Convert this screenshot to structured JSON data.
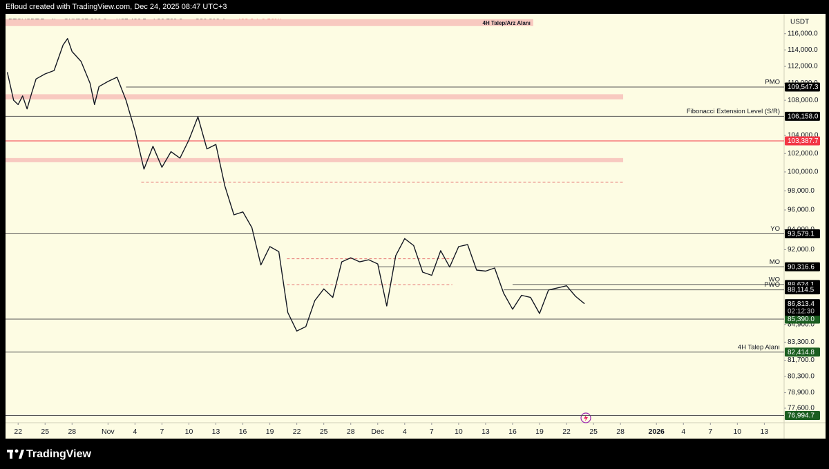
{
  "caption": "Efloud created with TradingView.com, Dec 24, 2025 08:47 UTC+3",
  "footer_brand": "TradingView",
  "chart_data": {
    "type": "line",
    "header": {
      "symbol": "BTCUSDT.P · 4h · OKX",
      "open": "O87,306.6",
      "high": "H87,426.5",
      "low": "L86,729.2",
      "close": "C86,813.4",
      "change": "−493.2 (−0.56%)"
    },
    "currency": "USDT",
    "log_scale": true,
    "x": [
      -1.2,
      -0.5,
      0,
      0.5,
      1,
      1.5,
      2,
      3,
      4,
      5,
      5.5,
      6,
      7,
      8,
      8.5,
      9,
      10,
      11,
      12,
      13,
      14,
      15,
      16,
      17,
      18,
      19,
      20,
      21,
      22,
      23,
      24,
      25,
      26,
      27,
      28,
      29,
      30,
      31,
      32,
      33,
      34,
      35,
      36,
      37,
      38,
      39,
      40,
      41,
      42,
      43,
      44,
      45,
      46,
      47,
      48,
      49,
      50,
      51,
      52,
      53,
      54,
      55,
      56,
      57,
      58,
      59,
      60,
      61,
      62,
      63
    ],
    "series": [
      {
        "color": "#131722",
        "values": [
          111300,
          108000,
          107500,
          108500,
          107000,
          108800,
          110500,
          111100,
          111500,
          114600,
          115400,
          113800,
          112600,
          110000,
          107500,
          109600,
          110200,
          110700,
          108000,
          104500,
          100300,
          102800,
          100500,
          102200,
          101500,
          103500,
          106100,
          102500,
          103000,
          98500,
          95500,
          95800,
          94200,
          90500,
          92300,
          91800,
          86000,
          84300,
          84700,
          87100,
          88200,
          87400,
          90800,
          91200,
          90800,
          91000,
          90600,
          86600,
          91400,
          93100,
          92400,
          89800,
          89500,
          91900,
          90300,
          92300,
          92500,
          90000,
          89900,
          90200,
          87800,
          86300,
          87600,
          87400,
          85900,
          88100,
          88300,
          88500,
          87500,
          86813.4
        ]
      }
    ],
    "xlim": [
      -1.4,
      85.2
    ],
    "ylim": [
      76400,
      118500
    ],
    "xticks": [
      {
        "value": 0,
        "label": "22"
      },
      {
        "value": 3,
        "label": "25"
      },
      {
        "value": 6,
        "label": "28"
      },
      {
        "value": 10,
        "label": "Nov"
      },
      {
        "value": 13,
        "label": "4"
      },
      {
        "value": 16,
        "label": "7"
      },
      {
        "value": 19,
        "label": "10"
      },
      {
        "value": 22,
        "label": "13"
      },
      {
        "value": 25,
        "label": "16"
      },
      {
        "value": 28,
        "label": "19"
      },
      {
        "value": 31,
        "label": "22"
      },
      {
        "value": 34,
        "label": "25"
      },
      {
        "value": 37,
        "label": "28"
      },
      {
        "value": 40,
        "label": "Dec"
      },
      {
        "value": 43,
        "label": "4"
      },
      {
        "value": 46,
        "label": "7"
      },
      {
        "value": 49,
        "label": "10"
      },
      {
        "value": 52,
        "label": "13"
      },
      {
        "value": 55,
        "label": "16"
      },
      {
        "value": 58,
        "label": "19"
      },
      {
        "value": 61,
        "label": "22"
      },
      {
        "value": 64,
        "label": "25"
      },
      {
        "value": 67,
        "label": "28"
      },
      {
        "value": 71,
        "label": "2026"
      },
      {
        "value": 74,
        "label": "4"
      },
      {
        "value": 77,
        "label": "7"
      },
      {
        "value": 80,
        "label": "10"
      },
      {
        "value": 83,
        "label": "13"
      }
    ],
    "yticks": [
      {
        "value": 116000,
        "label": "116,000.0"
      },
      {
        "value": 114000,
        "label": "114,000.0"
      },
      {
        "value": 112000,
        "label": "112,000.0"
      },
      {
        "value": 110000,
        "label": "110,000.0"
      },
      {
        "value": 108000,
        "label": "108,000.0"
      },
      {
        "value": 104000,
        "label": "104,000.0"
      },
      {
        "value": 102000,
        "label": "102,000.0"
      },
      {
        "value": 100000,
        "label": "100,000.0"
      },
      {
        "value": 98000,
        "label": "98,000.0"
      },
      {
        "value": 96000,
        "label": "96,000.0"
      },
      {
        "value": 94000,
        "label": "94,000.0"
      },
      {
        "value": 92000,
        "label": "92,000.0"
      },
      {
        "value": 84900,
        "label": "84,900.0"
      },
      {
        "value": 83300,
        "label": "83,300.0"
      },
      {
        "value": 81700,
        "label": "81,700.0"
      },
      {
        "value": 80300,
        "label": "80,300.0"
      },
      {
        "value": 78900,
        "label": "78,900.0"
      },
      {
        "value": 77600,
        "label": "77,600.0"
      }
    ],
    "zones": [
      {
        "label": "4H Talep/Arz Alanı",
        "from": 116950,
        "to": 117820,
        "x_end": 57.3,
        "color": "#f8c9c0"
      },
      {
        "from": 108100,
        "to": 108700,
        "x_end": 67.3,
        "color": "#f8c9c0"
      },
      {
        "from": 101050,
        "to": 101500,
        "x_end": 67.3,
        "color": "#f8c9c0"
      }
    ],
    "dashed_lines": [
      {
        "value": 98900,
        "x": [
          13.7,
          67.3
        ],
        "color": "#e57373"
      },
      {
        "value": 91100,
        "x": [
          29.9,
          48.3
        ],
        "color": "#e57373"
      },
      {
        "value": 88600,
        "x": [
          29.9,
          48.3
        ],
        "color": "#e57373"
      }
    ],
    "levels": [
      {
        "label": "PMO",
        "value": 109547.3,
        "value_label": "109,547.3",
        "x_start": 12,
        "tag_color": "#000000",
        "line_color": "#555555"
      },
      {
        "label": "Fibonacci Extension Level (S/R)",
        "value": 106158.0,
        "value_label": "106,158.0",
        "x_start": -1.4,
        "tag_color": "#000000",
        "line_color": "#555555"
      },
      {
        "value": 103387.7,
        "value_label": "103,387.7",
        "x_start": -1.4,
        "tag_color": "#f23645",
        "line_color": "#f23645"
      },
      {
        "label": "YO",
        "value": 93579.1,
        "value_label": "93,579.1",
        "x_start": -1.4,
        "tag_color": "#000000",
        "line_color": "#555555"
      },
      {
        "label": "MO",
        "value": 90316.6,
        "value_label": "90,316.6",
        "x_start": 40,
        "tag_color": "#000000",
        "line_color": "#555555"
      },
      {
        "label": "WO",
        "value": 88624.1,
        "value_label": "88,624.1",
        "x_start": 55,
        "tag_color": "#000000",
        "line_color": "#555555"
      },
      {
        "label": "PWO",
        "value": 88114.5,
        "value_label": "88,114.5",
        "x_start": 54,
        "tag_color": "#000000",
        "line_color": "#555555"
      },
      {
        "value": 85390.0,
        "value_label": "85,390.0",
        "x_start": -1.4,
        "tag_color": "#1b5e20",
        "line_color": "#555555"
      },
      {
        "label": "4H Talep Alanı",
        "value": 82414.8,
        "value_label": "82,414.8",
        "x_start": -1.4,
        "tag_color": "#1b5e20",
        "line_color": "#555555"
      },
      {
        "value": 76994.7,
        "value_label": "76,994.7",
        "x_start": -1.4,
        "tag_color": "#1b5e20",
        "line_color": "#555555"
      }
    ],
    "price_tag": {
      "value": 86813.4,
      "label": "86,813.4",
      "countdown": "02:12:30",
      "color": "#000000"
    }
  }
}
